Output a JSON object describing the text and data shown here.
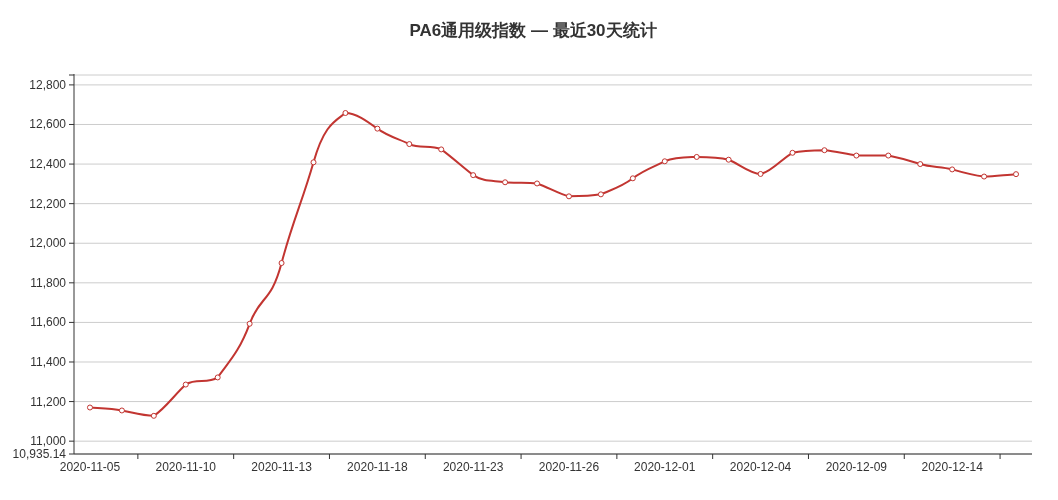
{
  "chart_data": {
    "type": "line",
    "title": "PA6通用级指数 — 最近30天统计",
    "categories": [
      "2020-11-05",
      null,
      null,
      "2020-11-10",
      null,
      null,
      "2020-11-13",
      null,
      null,
      "2020-11-18",
      null,
      null,
      "2020-11-23",
      null,
      null,
      "2020-11-26",
      null,
      null,
      "2020-12-01",
      null,
      null,
      "2020-12-04",
      null,
      null,
      "2020-12-09",
      null,
      null,
      "2020-12-14",
      null,
      null
    ],
    "series": [
      {
        "color": "#c23531",
        "values": [
          11170,
          11155,
          11128,
          11286,
          11322,
          11593,
          11900,
          12409,
          12658,
          12579,
          12501,
          12474,
          12344,
          12308,
          12302,
          12237,
          12247,
          12328,
          12414,
          12436,
          12422,
          12350,
          12457,
          12470,
          12443,
          12443,
          12400,
          12373,
          12337,
          12349
        ]
      }
    ],
    "ylim": [
      10935.14,
      12850
    ],
    "yticks": [
      {
        "value": 10935.14,
        "label": "10,935.14"
      },
      {
        "value": 11000,
        "label": "11,000"
      },
      {
        "value": 11200,
        "label": "11,200"
      },
      {
        "value": 11400,
        "label": "11,400"
      },
      {
        "value": 11600,
        "label": "11,600"
      },
      {
        "value": 11800,
        "label": "11,800"
      },
      {
        "value": 12000,
        "label": "12,000"
      },
      {
        "value": 12200,
        "label": "12,200"
      },
      {
        "value": 12400,
        "label": "12,400"
      },
      {
        "value": 12600,
        "label": "12,600"
      },
      {
        "value": 12800,
        "label": "12,800"
      },
      {
        "value": 12850,
        "label": null
      }
    ],
    "grid": "y",
    "marker": "circle",
    "line_style": "solid"
  }
}
